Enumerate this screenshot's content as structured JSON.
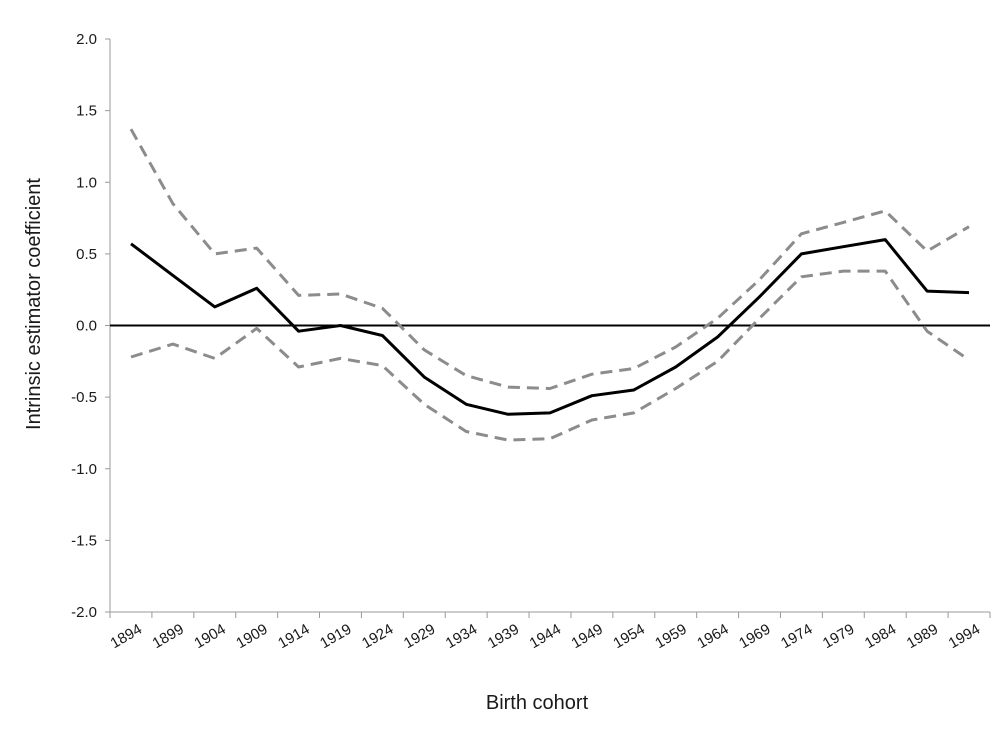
{
  "chart_data": {
    "type": "line",
    "title": "",
    "xlabel": "Birth cohort",
    "ylabel": "Intrinsic estimator coefficient",
    "ylim": [
      -2.0,
      2.0
    ],
    "yticks": [
      "-2.0",
      "-1.5",
      "-1.0",
      "-0.5",
      "0.0",
      "0.5",
      "1.0",
      "1.5",
      "2.0"
    ],
    "categories": [
      "1894",
      "1899",
      "1904",
      "1909",
      "1914",
      "1919",
      "1924",
      "1929",
      "1934",
      "1939",
      "1944",
      "1949",
      "1954",
      "1959",
      "1964",
      "1969",
      "1974",
      "1979",
      "1984",
      "1989",
      "1994"
    ],
    "series": [
      {
        "role": "estimate",
        "color": "#000000",
        "style": "solid",
        "values": [
          0.57,
          0.35,
          0.13,
          0.26,
          -0.04,
          0.0,
          -0.07,
          -0.36,
          -0.55,
          -0.62,
          -0.61,
          -0.49,
          -0.45,
          -0.29,
          -0.08,
          0.2,
          0.5,
          0.55,
          0.6,
          0.24,
          0.23
        ]
      },
      {
        "role": "upper-bound",
        "color": "#8c8c8c",
        "style": "dashed",
        "values": [
          1.37,
          0.85,
          0.5,
          0.54,
          0.21,
          0.22,
          0.12,
          -0.17,
          -0.35,
          -0.43,
          -0.44,
          -0.34,
          -0.3,
          -0.15,
          0.05,
          0.32,
          0.64,
          0.72,
          0.8,
          0.52,
          0.69
        ]
      },
      {
        "role": "lower-bound",
        "color": "#8c8c8c",
        "style": "dashed",
        "values": [
          -0.22,
          -0.13,
          -0.23,
          -0.02,
          -0.29,
          -0.23,
          -0.28,
          -0.55,
          -0.74,
          -0.8,
          -0.79,
          -0.66,
          -0.61,
          -0.44,
          -0.25,
          0.05,
          0.34,
          0.38,
          0.38,
          -0.04,
          -0.24
        ]
      }
    ],
    "reference_line": {
      "y": 0,
      "color": "#000000"
    },
    "grid": false,
    "legend": "none"
  }
}
